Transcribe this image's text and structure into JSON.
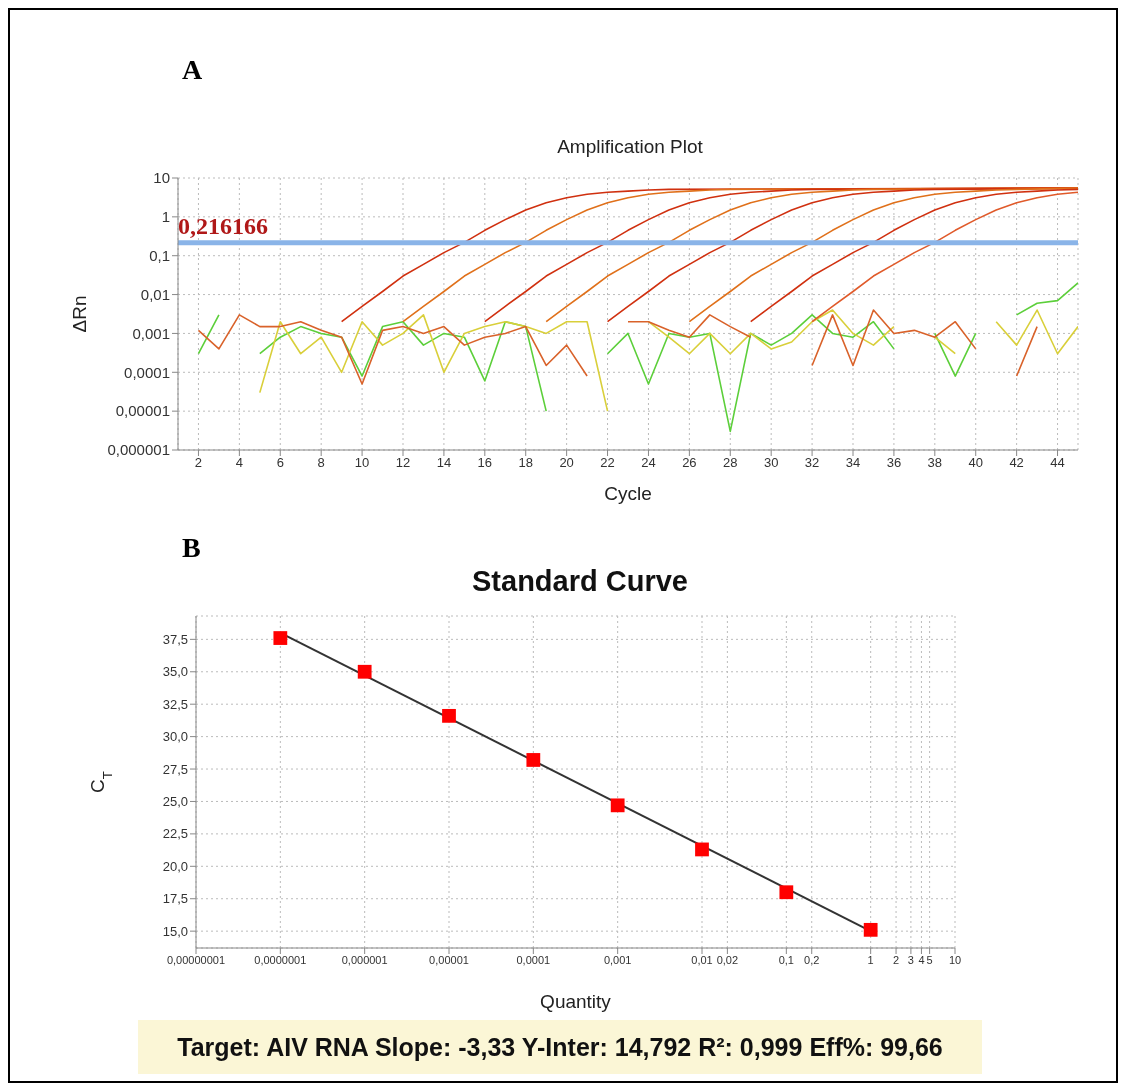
{
  "chart_data": [
    {
      "type": "line",
      "title": "Amplification Plot",
      "xlabel": "Cycle",
      "ylabel": "ΔRn",
      "annotations": [
        "A"
      ],
      "marker": "none",
      "log": "y",
      "grid": true,
      "xlim": [
        1,
        45
      ],
      "xticks": [
        2,
        4,
        6,
        8,
        10,
        12,
        14,
        16,
        18,
        20,
        22,
        24,
        26,
        28,
        30,
        32,
        34,
        36,
        38,
        40,
        42,
        44
      ],
      "ylim": [
        1e-06,
        10
      ],
      "yticks": [
        {
          "value": 1e-06,
          "label": "0,000001"
        },
        {
          "value": 1e-05,
          "label": "0,00001"
        },
        {
          "value": 0.0001,
          "label": "0,0001"
        },
        {
          "value": 0.001,
          "label": "0,001"
        },
        {
          "value": 0.01,
          "label": "0,01"
        },
        {
          "value": 0.1,
          "label": "0,1"
        },
        {
          "value": 1,
          "label": "1"
        },
        {
          "value": 10,
          "label": "10"
        }
      ],
      "ref_lines": [
        {
          "axis": "y",
          "value": 0.216166,
          "label": "0,216166",
          "color": "#8ab4e8"
        }
      ],
      "x": [
        2,
        3,
        4,
        5,
        6,
        7,
        8,
        9,
        10,
        11,
        12,
        13,
        14,
        15,
        16,
        17,
        18,
        19,
        20,
        21,
        22,
        23,
        24,
        25,
        26,
        27,
        28,
        29,
        30,
        31,
        32,
        33,
        34,
        35,
        36,
        37,
        38,
        39,
        40,
        41,
        42,
        43,
        44,
        45
      ],
      "series": [
        {
          "color": "#5ccf3a",
          "values": [
            0.0003,
            0.003,
            null,
            0.0003,
            0.0008,
            0.0015,
            0.001,
            0.0008,
            8e-05,
            0.0015,
            0.002,
            0.0005,
            0.001,
            0.0008,
            6e-05,
            0.002,
            0.0015,
            1e-05,
            null,
            null,
            0.0003,
            0.001,
            5e-05,
            0.001,
            0.0008,
            0.001,
            3e-06,
            0.001,
            0.0005,
            0.001,
            0.003,
            0.001,
            0.0008,
            0.002,
            0.0004,
            null,
            0.001,
            8e-05,
            0.001,
            null,
            0.003,
            0.006,
            0.007,
            0.02
          ]
        },
        {
          "color": "#d9cf3a",
          "values": [
            null,
            null,
            null,
            3e-05,
            0.002,
            0.0003,
            0.0008,
            0.0001,
            0.002,
            0.0005,
            0.001,
            0.003,
            0.0001,
            0.001,
            0.0015,
            0.002,
            0.0015,
            0.001,
            0.002,
            0.002,
            1e-05,
            null,
            0.002,
            0.0008,
            0.0003,
            0.001,
            0.0003,
            0.001,
            0.0004,
            0.0006,
            0.002,
            0.004,
            0.001,
            0.0005,
            0.0015,
            null,
            0.0008,
            0.0003,
            null,
            0.002,
            0.0005,
            0.004,
            0.0003,
            0.0015
          ]
        },
        {
          "color": "#d9622a",
          "values": [
            0.0012,
            0.0004,
            0.003,
            0.0015,
            0.0015,
            0.002,
            0.0012,
            0.0008,
            5e-05,
            0.0012,
            0.0015,
            0.001,
            0.0015,
            0.0005,
            0.0008,
            0.001,
            0.0015,
            0.00015,
            0.0005,
            8e-05,
            null,
            0.002,
            0.002,
            0.0012,
            0.0008,
            0.003,
            0.0015,
            0.0008,
            null,
            null,
            0.00015,
            0.003,
            0.00015,
            0.004,
            0.001,
            0.0012,
            0.0008,
            0.002,
            0.0004,
            null,
            8e-05,
            0.0015,
            null,
            null
          ]
        },
        {
          "color": "#d0300f",
          "x": [
            9,
            10,
            11,
            12,
            13,
            14,
            15,
            16,
            17,
            18,
            19,
            20,
            21,
            22,
            23,
            24,
            25,
            45
          ],
          "values": [
            0.002,
            0.005,
            0.012,
            0.03,
            0.06,
            0.12,
            0.22,
            0.45,
            0.85,
            1.5,
            2.3,
            3.1,
            3.8,
            4.3,
            4.6,
            4.9,
            5.1,
            5.5
          ]
        },
        {
          "color": "#e0701a",
          "x": [
            12,
            13,
            14,
            15,
            16,
            17,
            18,
            19,
            20,
            21,
            22,
            23,
            24,
            25,
            26,
            27,
            28,
            45
          ],
          "values": [
            0.002,
            0.005,
            0.012,
            0.03,
            0.06,
            0.12,
            0.22,
            0.45,
            0.85,
            1.5,
            2.3,
            3.1,
            3.8,
            4.3,
            4.6,
            4.9,
            5.1,
            5.5
          ]
        },
        {
          "color": "#d0300f",
          "x": [
            16,
            17,
            18,
            19,
            20,
            21,
            22,
            23,
            24,
            25,
            26,
            27,
            28,
            29,
            30,
            31,
            32,
            45
          ],
          "values": [
            0.002,
            0.005,
            0.012,
            0.03,
            0.06,
            0.12,
            0.22,
            0.45,
            0.85,
            1.5,
            2.3,
            3.1,
            3.8,
            4.3,
            4.6,
            4.9,
            5.1,
            5.5
          ]
        },
        {
          "color": "#e0701a",
          "x": [
            19,
            20,
            21,
            22,
            23,
            24,
            25,
            26,
            27,
            28,
            29,
            30,
            31,
            32,
            33,
            34,
            35,
            45
          ],
          "values": [
            0.002,
            0.005,
            0.012,
            0.03,
            0.06,
            0.12,
            0.22,
            0.45,
            0.85,
            1.5,
            2.3,
            3.1,
            3.8,
            4.3,
            4.6,
            4.9,
            5.1,
            5.5
          ]
        },
        {
          "color": "#d0300f",
          "x": [
            22,
            23,
            24,
            25,
            26,
            27,
            28,
            29,
            30,
            31,
            32,
            33,
            34,
            35,
            36,
            37,
            38,
            45
          ],
          "values": [
            0.002,
            0.005,
            0.012,
            0.03,
            0.06,
            0.12,
            0.22,
            0.45,
            0.85,
            1.5,
            2.3,
            3.1,
            3.8,
            4.3,
            4.6,
            4.9,
            5.1,
            5.5
          ]
        },
        {
          "color": "#e0701a",
          "x": [
            26,
            27,
            28,
            29,
            30,
            31,
            32,
            33,
            34,
            35,
            36,
            37,
            38,
            39,
            40,
            41,
            42,
            45
          ],
          "values": [
            0.002,
            0.005,
            0.012,
            0.03,
            0.06,
            0.12,
            0.22,
            0.45,
            0.85,
            1.5,
            2.3,
            3.1,
            3.8,
            4.3,
            4.6,
            4.9,
            5.1,
            5.5
          ]
        },
        {
          "color": "#d0300f",
          "x": [
            29,
            30,
            31,
            32,
            33,
            34,
            35,
            36,
            37,
            38,
            39,
            40,
            41,
            42,
            43,
            44,
            45
          ],
          "values": [
            0.002,
            0.005,
            0.012,
            0.03,
            0.06,
            0.12,
            0.22,
            0.45,
            0.85,
            1.5,
            2.3,
            3.1,
            3.8,
            4.3,
            4.6,
            4.9,
            5.1
          ]
        },
        {
          "color": "#e05a2a",
          "x": [
            32,
            33,
            34,
            35,
            36,
            37,
            38,
            39,
            40,
            41,
            42,
            43,
            44,
            45
          ],
          "values": [
            0.002,
            0.005,
            0.012,
            0.03,
            0.06,
            0.12,
            0.22,
            0.45,
            0.85,
            1.5,
            2.3,
            3.1,
            3.8,
            4.3
          ]
        }
      ]
    },
    {
      "type": "scatter",
      "title": "Standard Curve",
      "xlabel": "Quantity",
      "ylabel": "C$_{T}$",
      "annotations": [
        "B",
        "Target: AIV RNA Slope: -3,33 Y-Inter: 14,792 R²: 0,999 Eff%: 99,66"
      ],
      "marker": "square",
      "log": "x",
      "grid": true,
      "xlim": [
        1e-08,
        10
      ],
      "xticks": [
        {
          "value": 1e-08,
          "label": "0,00000001"
        },
        {
          "value": 1e-07,
          "label": "0,0000001"
        },
        {
          "value": 1e-06,
          "label": "0,000001"
        },
        {
          "value": 1e-05,
          "label": "0,00001"
        },
        {
          "value": 0.0001,
          "label": "0,0001"
        },
        {
          "value": 0.001,
          "label": "0,001"
        },
        {
          "value": 0.01,
          "label": "0,01"
        },
        {
          "value": 0.02,
          "label": "0,02"
        },
        {
          "value": 0.1,
          "label": "0,1"
        },
        {
          "value": 0.2,
          "label": "0,2"
        },
        1,
        2,
        3,
        4,
        5,
        10
      ],
      "ylim": [
        13.7,
        39.3
      ],
      "yticks": [
        {
          "value": 15,
          "label": "15,0"
        },
        {
          "value": 17.5,
          "label": "17,5"
        },
        {
          "value": 20,
          "label": "20,0"
        },
        {
          "value": 22.5,
          "label": "22,5"
        },
        {
          "value": 25,
          "label": "25,0"
        },
        {
          "value": 27.5,
          "label": "27,5"
        },
        {
          "value": 30,
          "label": "30,0"
        },
        {
          "value": 32.5,
          "label": "32,5"
        },
        {
          "value": 35,
          "label": "35,0"
        },
        {
          "value": 37.5,
          "label": "37,5"
        }
      ],
      "x": [
        1e-07,
        1e-06,
        1e-05,
        0.0001,
        0.001,
        0.01,
        0.1,
        1
      ],
      "series": [
        {
          "color": "#ff0000",
          "values": [
            37.6,
            35.0,
            31.6,
            28.2,
            24.7,
            21.3,
            18.0,
            15.1
          ]
        },
        {
          "type": "line",
          "marker": "none",
          "color": "#333333",
          "x": [
            1e-07,
            1
          ],
          "values": [
            38.0,
            15.0
          ]
        }
      ]
    }
  ]
}
